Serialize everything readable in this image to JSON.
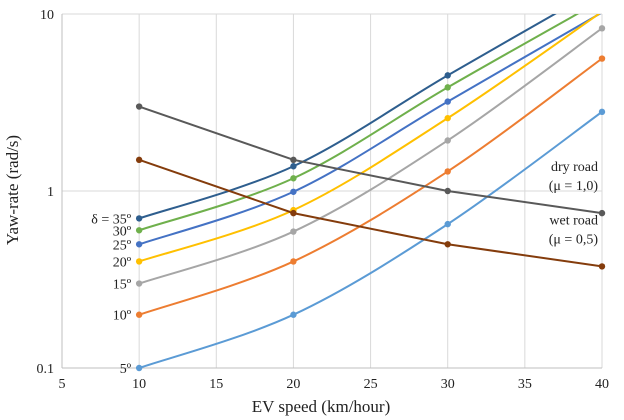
{
  "chart_data": {
    "type": "line",
    "xlabel": "EV speed (km/hour)",
    "ylabel": "Yaw-rate (rad/s)",
    "xlim": [
      5,
      40
    ],
    "ylim": [
      0.1,
      10
    ],
    "y_scale": "log",
    "x_ticks": [
      "5",
      "10",
      "15",
      "20",
      "25",
      "30",
      "35",
      "40"
    ],
    "y_ticks": [
      {
        "value": 0.1,
        "label": "0.1"
      },
      {
        "value": 1,
        "label": "1"
      },
      {
        "value": 10,
        "label": "10"
      }
    ],
    "grid": true,
    "smooth_series": [
      {
        "label": "δ = 35º",
        "color": "#2e5e8e",
        "points": [
          [
            10,
            0.7
          ],
          [
            20,
            1.38
          ],
          [
            30,
            4.5
          ],
          [
            40,
            14.2
          ]
        ]
      },
      {
        "label": "30º",
        "color": "#6fb04c",
        "points": [
          [
            10,
            0.6
          ],
          [
            20,
            1.18
          ],
          [
            30,
            3.85
          ],
          [
            40,
            12.0
          ]
        ]
      },
      {
        "label": "25º",
        "color": "#4472c4",
        "points": [
          [
            10,
            0.5
          ],
          [
            20,
            0.99
          ],
          [
            30,
            3.2
          ],
          [
            40,
            10.2
          ]
        ]
      },
      {
        "label": "20º",
        "color": "#ffc000",
        "points": [
          [
            10,
            0.4
          ],
          [
            20,
            0.78
          ],
          [
            30,
            2.58
          ],
          [
            40,
            10.3
          ]
        ]
      },
      {
        "label": "15º",
        "color": "#a6a6a6",
        "points": [
          [
            10,
            0.3
          ],
          [
            20,
            0.59
          ],
          [
            30,
            1.93
          ],
          [
            40,
            8.3
          ]
        ]
      },
      {
        "label": "10º",
        "color": "#ed7d31",
        "points": [
          [
            10,
            0.2
          ],
          [
            20,
            0.4
          ],
          [
            30,
            1.29
          ],
          [
            40,
            5.6
          ]
        ]
      },
      {
        "label": "5º",
        "color": "#5b9bd5",
        "points": [
          [
            10,
            0.1
          ],
          [
            20,
            0.2
          ],
          [
            30,
            0.65
          ],
          [
            40,
            2.8
          ]
        ]
      }
    ],
    "straight_series": [
      {
        "label_line1": "dry road",
        "label_line2": "(μ = 1,0)",
        "color": "#595959",
        "points": [
          [
            10,
            3.0
          ],
          [
            20,
            1.5
          ],
          [
            30,
            1.0
          ],
          [
            40,
            0.75
          ]
        ]
      },
      {
        "label_line1": "wet road",
        "label_line2": "(μ = 0,5)",
        "color": "#843c0c",
        "points": [
          [
            10,
            1.5
          ],
          [
            20,
            0.75
          ],
          [
            30,
            0.5
          ],
          [
            40,
            0.375
          ]
        ]
      }
    ]
  }
}
